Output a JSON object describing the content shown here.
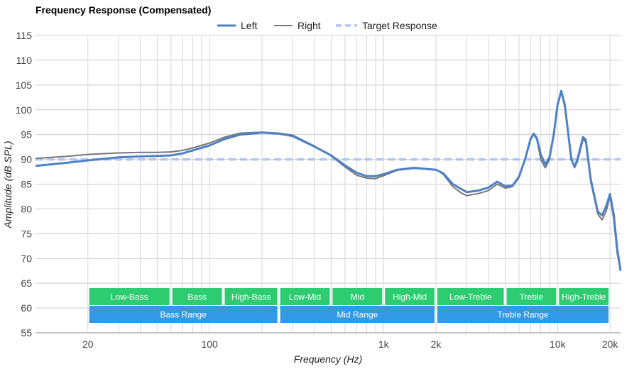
{
  "chart_data": {
    "type": "line",
    "title": "Frequency Response (Compensated)",
    "xlabel": "Frequency (Hz)",
    "ylabel": "Amplitude (dB SPL)",
    "x_scale": "log",
    "xlim": [
      10,
      23000
    ],
    "ylim": [
      55,
      115
    ],
    "y_ticks": [
      55,
      60,
      65,
      70,
      75,
      80,
      85,
      90,
      95,
      100,
      105,
      110,
      115
    ],
    "x_ticks": [
      {
        "value": 20,
        "label": "20"
      },
      {
        "value": 100,
        "label": "100"
      },
      {
        "value": 1000,
        "label": "1k"
      },
      {
        "value": 2000,
        "label": "2k"
      },
      {
        "value": 10000,
        "label": "10k"
      },
      {
        "value": 20000,
        "label": "20k"
      }
    ],
    "grid": true,
    "legend_position": "top",
    "legend": [
      "Left",
      "Right",
      "Target Response"
    ],
    "series": [
      {
        "name": "Left",
        "color": "#4f81c7",
        "points": [
          [
            10,
            88.7
          ],
          [
            15,
            89.3
          ],
          [
            20,
            89.8
          ],
          [
            30,
            90.4
          ],
          [
            40,
            90.6
          ],
          [
            50,
            90.7
          ],
          [
            60,
            90.8
          ],
          [
            70,
            91.2
          ],
          [
            80,
            91.8
          ],
          [
            100,
            92.8
          ],
          [
            120,
            94.0
          ],
          [
            150,
            95.0
          ],
          [
            200,
            95.4
          ],
          [
            250,
            95.2
          ],
          [
            300,
            94.7
          ],
          [
            400,
            92.6
          ],
          [
            500,
            90.8
          ],
          [
            600,
            88.8
          ],
          [
            700,
            87.3
          ],
          [
            800,
            86.6
          ],
          [
            900,
            86.6
          ],
          [
            1000,
            87.0
          ],
          [
            1200,
            87.9
          ],
          [
            1500,
            88.3
          ],
          [
            2000,
            87.9
          ],
          [
            2200,
            87.2
          ],
          [
            2500,
            85.0
          ],
          [
            2800,
            84.0
          ],
          [
            3000,
            83.4
          ],
          [
            3500,
            83.7
          ],
          [
            4000,
            84.3
          ],
          [
            4500,
            85.5
          ],
          [
            5000,
            84.6
          ],
          [
            5500,
            84.7
          ],
          [
            6000,
            86.5
          ],
          [
            6500,
            90.0
          ],
          [
            7000,
            94.2
          ],
          [
            7300,
            95.2
          ],
          [
            7600,
            94.3
          ],
          [
            8000,
            91.0
          ],
          [
            8500,
            89.0
          ],
          [
            9000,
            90.5
          ],
          [
            9500,
            95.0
          ],
          [
            10000,
            101.0
          ],
          [
            10500,
            103.8
          ],
          [
            11000,
            101.0
          ],
          [
            12000,
            90.0
          ],
          [
            12500,
            88.5
          ],
          [
            13000,
            90.0
          ],
          [
            14000,
            94.5
          ],
          [
            14500,
            94.0
          ],
          [
            15500,
            86.0
          ],
          [
            17000,
            79.5
          ],
          [
            18000,
            78.7
          ],
          [
            19000,
            80.5
          ],
          [
            20000,
            83.0
          ],
          [
            21000,
            79.0
          ],
          [
            22000,
            72.0
          ],
          [
            23000,
            67.5
          ]
        ]
      },
      {
        "name": "Right",
        "color": "#777777",
        "points": [
          [
            10,
            90.2
          ],
          [
            15,
            90.6
          ],
          [
            20,
            91.0
          ],
          [
            30,
            91.3
          ],
          [
            40,
            91.4
          ],
          [
            50,
            91.4
          ],
          [
            60,
            91.5
          ],
          [
            70,
            91.8
          ],
          [
            80,
            92.3
          ],
          [
            100,
            93.3
          ],
          [
            120,
            94.4
          ],
          [
            150,
            95.3
          ],
          [
            200,
            95.5
          ],
          [
            250,
            95.3
          ],
          [
            300,
            94.9
          ],
          [
            400,
            92.7
          ],
          [
            500,
            90.7
          ],
          [
            600,
            88.5
          ],
          [
            700,
            86.8
          ],
          [
            800,
            86.2
          ],
          [
            900,
            86.1
          ],
          [
            1000,
            86.7
          ],
          [
            1200,
            87.8
          ],
          [
            1500,
            88.2
          ],
          [
            2000,
            87.9
          ],
          [
            2200,
            87.0
          ],
          [
            2500,
            84.5
          ],
          [
            2800,
            83.2
          ],
          [
            3000,
            82.7
          ],
          [
            3500,
            83.1
          ],
          [
            4000,
            83.7
          ],
          [
            4500,
            85.0
          ],
          [
            5000,
            84.2
          ],
          [
            5500,
            84.5
          ],
          [
            6000,
            86.3
          ],
          [
            6500,
            90.0
          ],
          [
            7000,
            94.0
          ],
          [
            7300,
            95.0
          ],
          [
            7600,
            94.0
          ],
          [
            8000,
            90.0
          ],
          [
            8500,
            88.3
          ],
          [
            9000,
            90.0
          ],
          [
            9500,
            95.0
          ],
          [
            10000,
            101.3
          ],
          [
            10500,
            103.5
          ],
          [
            11000,
            100.5
          ],
          [
            12000,
            90.5
          ],
          [
            12500,
            88.3
          ],
          [
            13000,
            89.5
          ],
          [
            14000,
            94.0
          ],
          [
            14500,
            93.5
          ],
          [
            15500,
            85.5
          ],
          [
            17000,
            79.0
          ],
          [
            18000,
            77.8
          ],
          [
            19000,
            79.5
          ],
          [
            20000,
            82.5
          ],
          [
            21000,
            78.0
          ],
          [
            22000,
            71.0
          ],
          [
            23000,
            68.0
          ]
        ]
      },
      {
        "name": "Target Response",
        "color": "#b3c5f7",
        "dashed": true,
        "points": [
          [
            10,
            90
          ],
          [
            23000,
            90
          ]
        ]
      }
    ],
    "bands": [
      {
        "label": "Low-Bass",
        "from": 20,
        "to": 60,
        "row": 1,
        "color": "#2ecc71"
      },
      {
        "label": "Bass",
        "from": 60,
        "to": 120,
        "row": 1,
        "color": "#2ecc71"
      },
      {
        "label": "High-Bass",
        "from": 120,
        "to": 250,
        "row": 1,
        "color": "#2ecc71"
      },
      {
        "label": "Low-Mid",
        "from": 250,
        "to": 500,
        "row": 1,
        "color": "#2ecc71"
      },
      {
        "label": "Mid",
        "from": 500,
        "to": 1000,
        "row": 1,
        "color": "#2ecc71"
      },
      {
        "label": "High-Mid",
        "from": 1000,
        "to": 2000,
        "row": 1,
        "color": "#2ecc71"
      },
      {
        "label": "Low-Treble",
        "from": 2000,
        "to": 5000,
        "row": 1,
        "color": "#2ecc71"
      },
      {
        "label": "Treble",
        "from": 5000,
        "to": 10000,
        "row": 1,
        "color": "#2ecc71"
      },
      {
        "label": "High-Treble",
        "from": 10000,
        "to": 20000,
        "row": 1,
        "color": "#2ecc71"
      },
      {
        "label": "Bass Range",
        "from": 20,
        "to": 250,
        "row": 2,
        "color": "#3399e6"
      },
      {
        "label": "Mid Range",
        "from": 250,
        "to": 2000,
        "row": 2,
        "color": "#3399e6"
      },
      {
        "label": "Treble Range",
        "from": 2000,
        "to": 20000,
        "row": 2,
        "color": "#3399e6"
      }
    ]
  }
}
